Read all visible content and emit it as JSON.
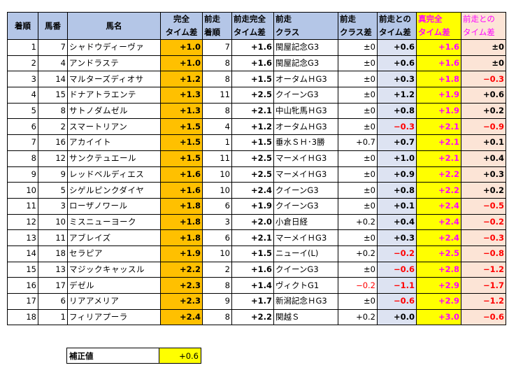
{
  "headers": {
    "finish": "着順",
    "horse_no": "馬番",
    "horse_name": "馬名",
    "full_time_diff": [
      "完全",
      "タイム差"
    ],
    "prev_finish": [
      "前走",
      "着順"
    ],
    "prev_full_time_diff": [
      "前走完全",
      "タイム差"
    ],
    "prev_class": [
      "前走",
      "クラス"
    ],
    "prev_class_diff": [
      "前走",
      "クラス差"
    ],
    "prev_time_diff_vs": [
      "前走との",
      "タイム差"
    ],
    "true_full_time_diff": [
      "真完全",
      "タイム差"
    ],
    "vs_prev_time_diff": [
      "前走との",
      "タイム差"
    ]
  },
  "rows": [
    {
      "finish": "1",
      "no": "7",
      "name": "シャドウディーヴァ",
      "ftd": "+1.0",
      "prev_finish": "7",
      "ptd": "+1.6",
      "pclass": "閩屋記念G3",
      "pcd": "±0",
      "pt": "+0.6",
      "ttd": "+1.6",
      "diff": "±0"
    },
    {
      "finish": "2",
      "no": "4",
      "name": "アンドラステ",
      "ftd": "+1.0",
      "prev_finish": "8",
      "ptd": "+1.6",
      "pclass": "閩屋記念G3",
      "pcd": "±0",
      "pt": "+0.6",
      "ttd": "+1.6",
      "diff": "±0"
    },
    {
      "finish": "3",
      "no": "14",
      "name": "マルターズディオサ",
      "ftd": "+1.2",
      "prev_finish": "8",
      "ptd": "+1.5",
      "pclass": "オータムＨG3",
      "pcd": "±0",
      "pt": "+0.3",
      "ttd": "+1.8",
      "diff": "−0.3"
    },
    {
      "finish": "4",
      "no": "15",
      "name": "ドナアトラエンテ",
      "ftd": "+1.3",
      "prev_finish": "11",
      "ptd": "+2.5",
      "pclass": "クイーンG3",
      "pcd": "±0",
      "pt": "+1.2",
      "ttd": "+1.9",
      "diff": "+0.6"
    },
    {
      "finish": "5",
      "no": "8",
      "name": "サトノダムゼル",
      "ftd": "+1.3",
      "prev_finish": "8",
      "ptd": "+2.1",
      "pclass": "中山牝馬ＨG3",
      "pcd": "±0",
      "pt": "+0.8",
      "ttd": "+1.9",
      "diff": "+0.2"
    },
    {
      "finish": "6",
      "no": "2",
      "name": "スマートリアン",
      "ftd": "+1.5",
      "prev_finish": "4",
      "ptd": "+1.2",
      "pclass": "オータムＨG3",
      "pcd": "±0",
      "pt": "−0.3",
      "ttd": "+2.1",
      "diff": "−0.9"
    },
    {
      "finish": "7",
      "no": "16",
      "name": "アカイイト",
      "ftd": "+1.5",
      "prev_finish": "1",
      "ptd": "+1.5",
      "pclass": "垂水ＳＨ･3勝",
      "pcd": "+0.7",
      "pt": "+0.7",
      "ttd": "+2.1",
      "diff": "+0.1"
    },
    {
      "finish": "8",
      "no": "12",
      "name": "サンクテュエール",
      "ftd": "+1.5",
      "prev_finish": "11",
      "ptd": "+2.5",
      "pclass": "マーメイＨG3",
      "pcd": "±0",
      "pt": "+1.0",
      "ttd": "+2.1",
      "diff": "+0.4"
    },
    {
      "finish": "9",
      "no": "9",
      "name": "レッドベルディエス",
      "ftd": "+1.6",
      "prev_finish": "10",
      "ptd": "+2.5",
      "pclass": "マーメイＨG3",
      "pcd": "±0",
      "pt": "+0.9",
      "ttd": "+2.2",
      "diff": "+0.3"
    },
    {
      "finish": "10",
      "no": "5",
      "name": "シゲルピンクダイヤ",
      "ftd": "+1.6",
      "prev_finish": "10",
      "ptd": "+2.4",
      "pclass": "クイーンG3",
      "pcd": "±0",
      "pt": "+0.8",
      "ttd": "+2.2",
      "diff": "+0.2"
    },
    {
      "finish": "11",
      "no": "3",
      "name": "ローザノワール",
      "ftd": "+1.8",
      "prev_finish": "6",
      "ptd": "+1.9",
      "pclass": "クイーンG3",
      "pcd": "±0",
      "pt": "+0.1",
      "ttd": "+2.4",
      "diff": "−0.5"
    },
    {
      "finish": "12",
      "no": "10",
      "name": "ミスニューヨーク",
      "ftd": "+1.8",
      "prev_finish": "3",
      "ptd": "+2.0",
      "pclass": "小倉日経",
      "pcd": "+0.2",
      "pt": "+0.4",
      "ttd": "+2.4",
      "diff": "−0.2"
    },
    {
      "finish": "13",
      "no": "11",
      "name": "アブレイズ",
      "ftd": "+1.8",
      "prev_finish": "6",
      "ptd": "+2.1",
      "pclass": "マーメイＨG3",
      "pcd": "±0",
      "pt": "+0.3",
      "ttd": "+2.4",
      "diff": "−0.3"
    },
    {
      "finish": "14",
      "no": "18",
      "name": "セラピア",
      "ftd": "+1.9",
      "prev_finish": "10",
      "ptd": "+1.5",
      "pclass": "ニューイ(L)",
      "pcd": "+0.2",
      "pt": "−0.2",
      "ttd": "+2.5",
      "diff": "−0.8"
    },
    {
      "finish": "15",
      "no": "13",
      "name": "マジックキャッスル",
      "ftd": "+2.2",
      "prev_finish": "2",
      "ptd": "+1.6",
      "pclass": "クイーンG3",
      "pcd": "±0",
      "pt": "−0.6",
      "ttd": "+2.8",
      "diff": "−1.2"
    },
    {
      "finish": "16",
      "no": "17",
      "name": "デゼル",
      "ftd": "+2.3",
      "prev_finish": "8",
      "ptd": "+1.4",
      "pclass": "ヴィクトG1",
      "pcd": "−0.2",
      "pt": "−1.1",
      "ttd": "+2.9",
      "diff": "−1.7"
    },
    {
      "finish": "17",
      "no": "6",
      "name": "リアアメリア",
      "ftd": "+2.3",
      "prev_finish": "9",
      "ptd": "+1.7",
      "pclass": "新潟記念ＨG3",
      "pcd": "±0",
      "pt": "−0.6",
      "ttd": "+2.9",
      "diff": "−1.2"
    },
    {
      "finish": "18",
      "no": "1",
      "name": "フィリアプーラ",
      "ftd": "+2.4",
      "prev_finish": "8",
      "ptd": "+2.2",
      "pclass": "関越Ｓ",
      "pcd": "+0.2",
      "pt": "+0.0",
      "ttd": "+3.0",
      "diff": "−0.6"
    }
  ],
  "correction": {
    "label": "補正値",
    "value": "+0.6"
  },
  "colors": {
    "header_bg": "#b4c6e7",
    "full_time_diff_bg": "#ffc000",
    "prev_time_diff_bg": "#dde3f2",
    "true_full_bg": "#ffff00",
    "diff_bg": "#fce4d6",
    "magenta": "#ff00ff",
    "negative": "#ff0000"
  }
}
